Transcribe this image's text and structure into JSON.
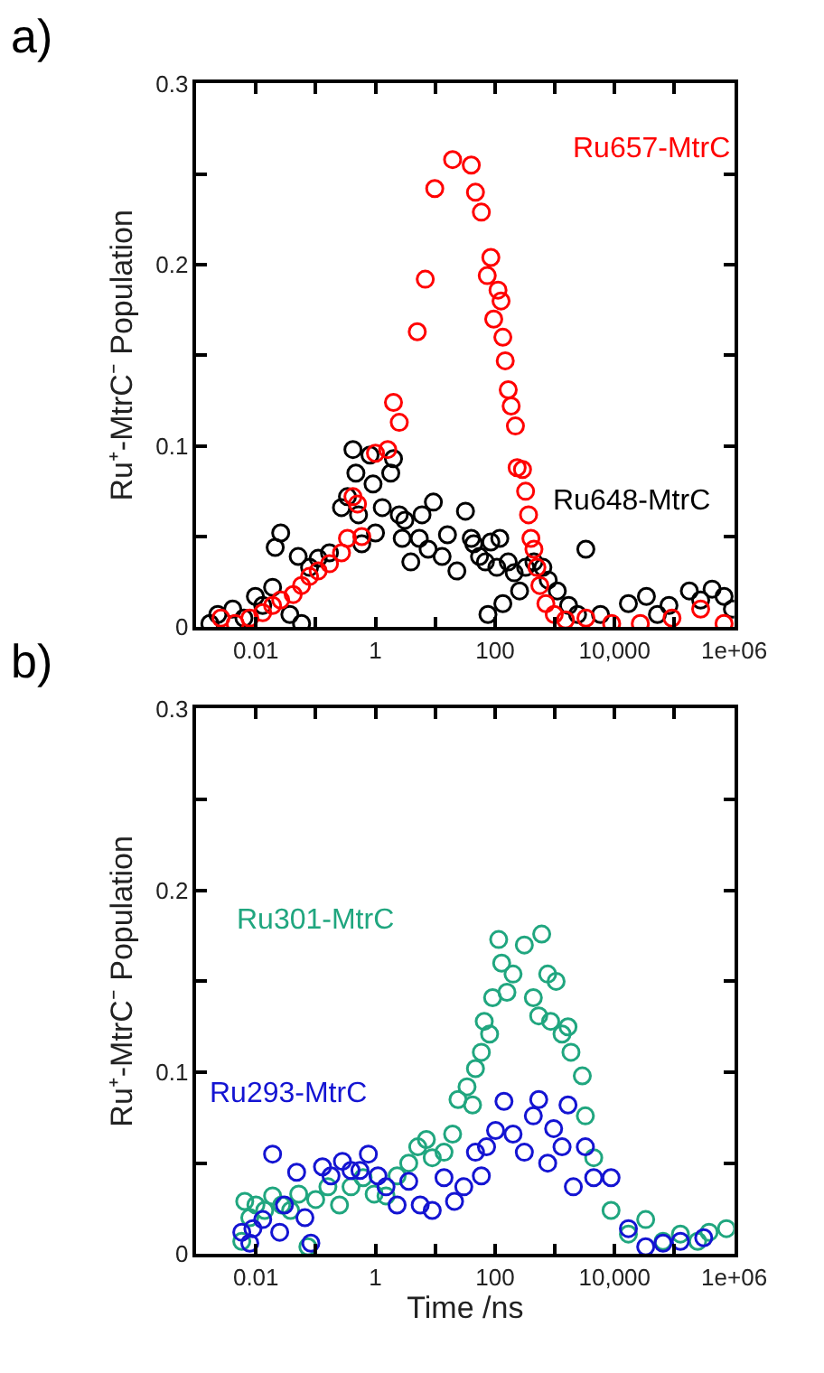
{
  "chart_data": [
    {
      "type": "scatter",
      "title": "a)",
      "ylabel": "Ru⁺-MtrC⁻ Population",
      "log": "x",
      "marker": "circle",
      "legend": false,
      "xlim": [
        0.001,
        1000000
      ],
      "ylim": [
        0,
        0.3
      ],
      "xticks": [
        {
          "value": 0.001,
          "label": null
        },
        0.01,
        {
          "value": 0.1,
          "label": null
        },
        1,
        {
          "value": 10,
          "label": null
        },
        100,
        {
          "value": 1000,
          "label": null
        },
        {
          "value": 10000,
          "label": "10,000"
        },
        {
          "value": 100000,
          "label": null
        },
        {
          "value": 1000000,
          "label": "1e+06"
        }
      ],
      "yticks": [
        0,
        {
          "value": 0.05,
          "label": null
        },
        0.1,
        {
          "value": 0.15,
          "label": null
        },
        0.2,
        {
          "value": 0.25,
          "label": null
        },
        0.3
      ],
      "series": [
        {
          "name": "Ru648-MtrC",
          "color": "#000000",
          "x": [
            0.0017,
            0.0023,
            0.0041,
            0.0063,
            0.0098,
            0.013,
            0.019,
            0.021,
            0.026,
            0.037,
            0.051,
            0.058,
            0.079,
            0.11,
            0.17,
            0.27,
            0.34,
            0.42,
            0.47,
            0.52,
            0.59,
            0.81,
            0.91,
            1.0,
            1.3,
            1.8,
            2.0,
            2.5,
            2.8,
            3.1,
            3.9,
            5.4,
            6.0,
            7.6,
            9.3,
            13,
            16,
            23,
            32,
            40,
            44,
            55,
            69,
            76,
            85,
            107,
            120,
            135,
            166,
            209,
            257,
            324,
            447,
            631,
            776,
            1100,
            1700,
            2400,
            3300,
            5800,
            17000,
            34000,
            52000,
            81000,
            178000,
            275000,
            427000,
            676000,
            933000
          ],
          "values": [
            0.002,
            0.007,
            0.01,
            0.005,
            0.017,
            0.012,
            0.022,
            0.044,
            0.052,
            0.007,
            0.039,
            0.002,
            0.033,
            0.038,
            0.041,
            0.066,
            0.072,
            0.098,
            0.085,
            0.062,
            0.046,
            0.095,
            0.079,
            0.052,
            0.066,
            0.085,
            0.093,
            0.062,
            0.049,
            0.059,
            0.036,
            0.049,
            0.062,
            0.043,
            0.069,
            0.039,
            0.051,
            0.031,
            0.064,
            0.049,
            0.046,
            0.039,
            0.036,
            0.007,
            0.047,
            0.033,
            0.049,
            0.013,
            0.036,
            0.03,
            0.02,
            0.033,
            0.036,
            0.033,
            0.026,
            0.02,
            0.012,
            0.007,
            0.043,
            0.007,
            0.013,
            0.017,
            0.007,
            0.012,
            0.02,
            0.015,
            0.021,
            0.017,
            0.01
          ]
        },
        {
          "name": "Ru657-MtrC",
          "color": "#ff0000",
          "x": [
            0.0026,
            0.0045,
            0.0079,
            0.013,
            0.019,
            0.026,
            0.042,
            0.058,
            0.079,
            0.11,
            0.17,
            0.27,
            0.34,
            0.42,
            0.5,
            0.59,
            1.0,
            1.6,
            2.0,
            2.5,
            5.0,
            6.8,
            9.8,
            19.5,
            40,
            47,
            59,
            74,
            85,
            95,
            112,
            126,
            135,
            148,
            166,
            186,
            219,
            234,
            288,
            324,
            363,
            398,
            447,
            501,
            562,
            708,
            977,
            1510,
            3310,
            8910,
            26900,
            91200,
            275000,
            676000
          ],
          "values": [
            0.005,
            0.002,
            0.005,
            0.008,
            0.012,
            0.015,
            0.018,
            0.023,
            0.028,
            0.031,
            0.035,
            0.041,
            0.049,
            0.072,
            0.068,
            0.05,
            0.096,
            0.098,
            0.124,
            0.113,
            0.163,
            0.192,
            0.242,
            0.258,
            0.255,
            0.24,
            0.229,
            0.194,
            0.204,
            0.17,
            0.186,
            0.18,
            0.16,
            0.147,
            0.131,
            0.122,
            0.111,
            0.088,
            0.087,
            0.075,
            0.062,
            0.049,
            0.043,
            0.033,
            0.023,
            0.013,
            0.007,
            0.004,
            0.005,
            0.002,
            0.002,
            0.005,
            0.01,
            0.002
          ]
        }
      ]
    },
    {
      "type": "scatter",
      "title": "b)",
      "xlabel": "Time /ns",
      "ylabel": "Ru⁺-MtrC⁻ Population",
      "log": "x",
      "marker": "circle",
      "legend": false,
      "xlim": [
        0.001,
        1000000
      ],
      "ylim": [
        0,
        0.3
      ],
      "xticks": [
        {
          "value": 0.001,
          "label": null
        },
        0.01,
        {
          "value": 0.1,
          "label": null
        },
        1,
        {
          "value": 10,
          "label": null
        },
        100,
        {
          "value": 1000,
          "label": null
        },
        {
          "value": 10000,
          "label": "10,000"
        },
        {
          "value": 100000,
          "label": null
        },
        {
          "value": 1000000,
          "label": "1e+06"
        }
      ],
      "yticks": [
        0,
        {
          "value": 0.05,
          "label": null
        },
        0.1,
        {
          "value": 0.15,
          "label": null
        },
        0.2,
        {
          "value": 0.25,
          "label": null
        },
        0.3
      ],
      "series": [
        {
          "name": "Ru301-MtrC",
          "color": "#20a67f",
          "x": [
            0.0058,
            0.0065,
            0.0079,
            0.01,
            0.014,
            0.019,
            0.027,
            0.038,
            0.052,
            0.074,
            0.1,
            0.16,
            0.25,
            0.39,
            0.62,
            0.95,
            1.5,
            2.3,
            3.6,
            5.1,
            7.1,
            8.9,
            14,
            19.5,
            24,
            34,
            42,
            47,
            59,
            66,
            81,
            91,
            115,
            129,
            158,
            200,
            309,
            437,
            537,
            603,
            759,
            851,
            1050,
            1320,
            1660,
            1860,
            2880,
            3240,
            4470,
            8710,
            17000,
            33100,
            64600,
            126000,
            245000,
            380000,
            741000
          ],
          "values": [
            0.007,
            0.029,
            0.02,
            0.027,
            0.024,
            0.032,
            0.027,
            0.024,
            0.033,
            0.004,
            0.03,
            0.037,
            0.027,
            0.037,
            0.042,
            0.033,
            0.032,
            0.043,
            0.05,
            0.059,
            0.063,
            0.053,
            0.056,
            0.066,
            0.085,
            0.092,
            0.082,
            0.102,
            0.111,
            0.128,
            0.121,
            0.141,
            0.173,
            0.16,
            0.144,
            0.154,
            0.17,
            0.141,
            0.131,
            0.176,
            0.154,
            0.128,
            0.15,
            0.121,
            0.125,
            0.111,
            0.098,
            0.076,
            0.053,
            0.024,
            0.011,
            0.019,
            0.007,
            0.011,
            0.007,
            0.012,
            0.014
          ]
        },
        {
          "name": "Ru293-MtrC",
          "color": "#1414d2",
          "x": [
            0.0058,
            0.0079,
            0.0089,
            0.013,
            0.019,
            0.025,
            0.03,
            0.048,
            0.066,
            0.083,
            0.13,
            0.18,
            0.28,
            0.39,
            0.55,
            0.76,
            1.1,
            1.5,
            2.3,
            3.6,
            5.6,
            8.9,
            14,
            21,
            30,
            47,
            59,
            72,
            102,
            141,
            200,
            309,
            437,
            537,
            759,
            955,
            1320,
            1660,
            2040,
            3240,
            4470,
            8710,
            17000,
            33100,
            64600,
            126000,
            309000
          ],
          "values": [
            0.012,
            0.006,
            0.014,
            0.019,
            0.055,
            0.012,
            0.027,
            0.045,
            0.02,
            0.006,
            0.048,
            0.043,
            0.051,
            0.046,
            0.046,
            0.055,
            0.043,
            0.037,
            0.027,
            0.04,
            0.027,
            0.024,
            0.042,
            0.029,
            0.037,
            0.056,
            0.043,
            0.059,
            0.068,
            0.084,
            0.066,
            0.056,
            0.076,
            0.085,
            0.05,
            0.069,
            0.059,
            0.082,
            0.037,
            0.059,
            0.042,
            0.042,
            0.014,
            0.004,
            0.006,
            0.007,
            0.009
          ]
        }
      ]
    }
  ]
}
